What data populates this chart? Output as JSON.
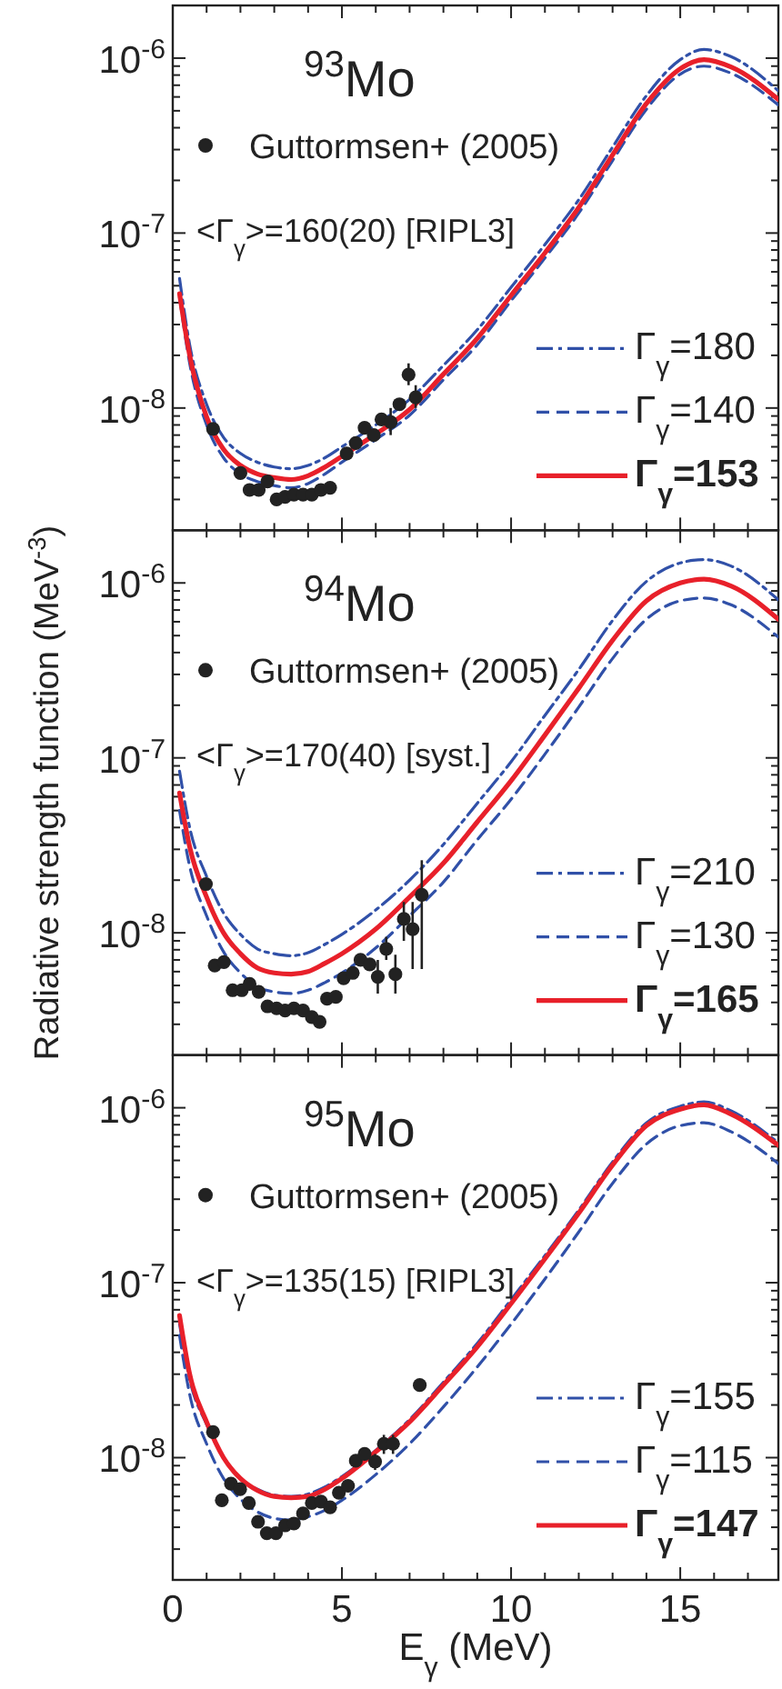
{
  "chart_data": [
    {
      "type": "line",
      "title": "$^{93}$Mo",
      "annotations": [
        "<Γ$_{γ}$>=160(20) [RIPL3]"
      ],
      "xlim": [
        0,
        17.9
      ],
      "ylim": [
        2e-09,
        2e-06
      ],
      "log": "y",
      "tick_labels": "y",
      "legend": "bottom right",
      "xticks": [
        0,
        {
          "value": 1,
          "label": null
        },
        {
          "value": 2,
          "label": null
        },
        {
          "value": 3,
          "label": null
        },
        {
          "value": 4,
          "label": null
        },
        5,
        {
          "value": 6,
          "label": null
        },
        {
          "value": 7,
          "label": null
        },
        {
          "value": 8,
          "label": null
        },
        {
          "value": 9,
          "label": null
        },
        10,
        {
          "value": 11,
          "label": null
        },
        {
          "value": 12,
          "label": null
        },
        {
          "value": 13,
          "label": null
        },
        {
          "value": 14,
          "label": null
        },
        15,
        {
          "value": 16,
          "label": null
        },
        {
          "value": 17,
          "label": null
        }
      ],
      "yticks": [
        {
          "value": 3e-09,
          "label": null
        },
        {
          "value": 4e-09,
          "label": null
        },
        {
          "value": 5e-09,
          "label": null
        },
        {
          "value": 6e-09,
          "label": null
        },
        {
          "value": 7e-09,
          "label": null
        },
        {
          "value": 8e-09,
          "label": null
        },
        {
          "value": 9e-09,
          "label": null
        },
        {
          "value": 1e-08,
          "label": "10$^{-8}$"
        },
        {
          "value": 2e-08,
          "label": null
        },
        {
          "value": 3e-08,
          "label": null
        },
        {
          "value": 4e-08,
          "label": null
        },
        {
          "value": 5e-08,
          "label": null
        },
        {
          "value": 6e-08,
          "label": null
        },
        {
          "value": 7e-08,
          "label": null
        },
        {
          "value": 8e-08,
          "label": null
        },
        {
          "value": 9e-08,
          "label": null
        },
        {
          "value": 1e-07,
          "label": "10$^{-7}$"
        },
        {
          "value": 2e-07,
          "label": null
        },
        {
          "value": 3e-07,
          "label": null
        },
        {
          "value": 4e-07,
          "label": null
        },
        {
          "value": 5e-07,
          "label": null
        },
        {
          "value": 6e-07,
          "label": null
        },
        {
          "value": 7e-07,
          "label": null
        },
        {
          "value": 8e-07,
          "label": null
        },
        {
          "value": 9e-07,
          "label": null
        },
        {
          "value": 1e-06,
          "label": "10$^{-6}$"
        }
      ],
      "series": [
        {
          "type": "scatter",
          "name": "Guttormsen+ (2005)",
          "color": "#222222",
          "marker": "circle",
          "x": [
            1.19,
            2.0,
            2.27,
            2.54,
            2.8,
            3.07,
            3.32,
            3.58,
            3.85,
            4.11,
            4.38,
            4.65,
            5.14,
            5.41,
            5.67,
            5.94,
            6.17,
            6.44,
            6.7,
            6.97,
            7.18
          ],
          "values": [
            7.6e-09,
            4.25e-09,
            3.4e-09,
            3.4e-09,
            3.8e-09,
            3e-09,
            3.1e-09,
            3.2e-09,
            3.2e-09,
            3.2e-09,
            3.4e-09,
            3.5e-09,
            5.5e-09,
            6.3e-09,
            7.7e-09,
            7e-09,
            8.6e-09,
            8.3e-09,
            1.05e-08,
            1.55e-08,
            1.15e-08
          ],
          "errors": [
            null,
            null,
            null,
            null,
            null,
            null,
            null,
            null,
            null,
            null,
            null,
            null,
            null,
            null,
            null,
            null,
            null,
            [
              7e-09,
              1e-08
            ],
            null,
            [
              1.35e-08,
              1.8e-08
            ],
            [
              1e-08,
              1.35e-08
            ]
          ]
        },
        {
          "name": "Γ$_{γ}$=180",
          "color": "#3050a8",
          "line_style": "dashdot",
          "x": [
            0.2,
            0.5,
            1,
            1.5,
            2,
            2.5,
            3,
            3.5,
            4,
            4.5,
            5,
            6,
            7,
            8,
            9,
            10,
            11,
            12,
            13,
            14,
            15,
            15.7,
            16.5,
            17.9
          ],
          "values": [
            5.5e-08,
            2.3e-08,
            1.05e-08,
            6.8e-09,
            5.5e-09,
            4.9e-09,
            4.6e-09,
            4.5e-09,
            4.7e-09,
            5.2e-09,
            6e-09,
            8e-09,
            1.12e-08,
            1.75e-08,
            2.8e-08,
            4.9e-08,
            8.6e-08,
            1.55e-07,
            3.1e-07,
            6.1e-07,
            9.8e-07,
            1.12e-06,
            1.02e-06,
            6.5e-07
          ]
        },
        {
          "name": "Γ$_{γ}$=140",
          "color": "#3050a8",
          "line_style": "dashed",
          "x": [
            0.2,
            0.5,
            1,
            1.5,
            2,
            2.5,
            3,
            3.5,
            4,
            4.5,
            5,
            6,
            7,
            8,
            9,
            10,
            11,
            12,
            13,
            14,
            15,
            15.7,
            16.5,
            17.9
          ],
          "values": [
            4.3e-08,
            1.8e-08,
            8e-09,
            5.2e-09,
            4.2e-09,
            3.8e-09,
            3.6e-09,
            3.5e-09,
            3.7e-09,
            4.2e-09,
            4.9e-09,
            6.6e-09,
            9.1e-09,
            1.45e-08,
            2.3e-08,
            4.1e-08,
            7.2e-08,
            1.3e-07,
            2.6e-07,
            5.1e-07,
            8.1e-07,
            9e-07,
            8.2e-07,
            5.4e-07
          ]
        },
        {
          "name": "Γ$_{γ}$=153",
          "color": "#e8202a",
          "line_style": "solid",
          "x": [
            0.2,
            0.5,
            1,
            1.5,
            2,
            2.5,
            3,
            3.5,
            4,
            4.5,
            5,
            6,
            7,
            8,
            9,
            10,
            11,
            12,
            13,
            14,
            15,
            15.7,
            16.5,
            17.9
          ],
          "values": [
            4.5e-08,
            2e-08,
            8.9e-09,
            5.8e-09,
            4.7e-09,
            4.2e-09,
            4e-09,
            3.9e-09,
            4.1e-09,
            4.6e-09,
            5.3e-09,
            7.1e-09,
            9.8e-09,
            1.56e-08,
            2.5e-08,
            4.4e-08,
            7.7e-08,
            1.4e-07,
            2.8e-07,
            5.5e-07,
            8.7e-07,
            9.8e-07,
            8.9e-07,
            5.8e-07
          ]
        }
      ]
    },
    {
      "type": "line",
      "title": "$^{94}$Mo",
      "ylabel": "Radiative strength function (MeV$^{-3}$)",
      "annotations": [
        "<Γ$_{γ}$>=170(40) [syst.]"
      ],
      "xlim": [
        0,
        17.9
      ],
      "ylim": [
        2e-09,
        2e-06
      ],
      "log": "y",
      "tick_labels": "y",
      "legend": "bottom right",
      "xticks": [
        0,
        {
          "value": 1,
          "label": null
        },
        {
          "value": 2,
          "label": null
        },
        {
          "value": 3,
          "label": null
        },
        {
          "value": 4,
          "label": null
        },
        5,
        {
          "value": 6,
          "label": null
        },
        {
          "value": 7,
          "label": null
        },
        {
          "value": 8,
          "label": null
        },
        {
          "value": 9,
          "label": null
        },
        10,
        {
          "value": 11,
          "label": null
        },
        {
          "value": 12,
          "label": null
        },
        {
          "value": 13,
          "label": null
        },
        {
          "value": 14,
          "label": null
        },
        15,
        {
          "value": 16,
          "label": null
        },
        {
          "value": 17,
          "label": null
        }
      ],
      "yticks": [
        {
          "value": 3e-09,
          "label": null
        },
        {
          "value": 4e-09,
          "label": null
        },
        {
          "value": 5e-09,
          "label": null
        },
        {
          "value": 6e-09,
          "label": null
        },
        {
          "value": 7e-09,
          "label": null
        },
        {
          "value": 8e-09,
          "label": null
        },
        {
          "value": 9e-09,
          "label": null
        },
        {
          "value": 1e-08,
          "label": "10$^{-8}$"
        },
        {
          "value": 2e-08,
          "label": null
        },
        {
          "value": 3e-08,
          "label": null
        },
        {
          "value": 4e-08,
          "label": null
        },
        {
          "value": 5e-08,
          "label": null
        },
        {
          "value": 6e-08,
          "label": null
        },
        {
          "value": 7e-08,
          "label": null
        },
        {
          "value": 8e-08,
          "label": null
        },
        {
          "value": 9e-08,
          "label": null
        },
        {
          "value": 1e-07,
          "label": "10$^{-7}$"
        },
        {
          "value": 2e-07,
          "label": null
        },
        {
          "value": 3e-07,
          "label": null
        },
        {
          "value": 4e-07,
          "label": null
        },
        {
          "value": 5e-07,
          "label": null
        },
        {
          "value": 6e-07,
          "label": null
        },
        {
          "value": 7e-07,
          "label": null
        },
        {
          "value": 8e-07,
          "label": null
        },
        {
          "value": 9e-07,
          "label": null
        },
        {
          "value": 1e-06,
          "label": "10$^{-6}$"
        }
      ],
      "series": [
        {
          "type": "scatter",
          "name": "Guttormsen+ (2005)",
          "color": "#222222",
          "marker": "circle",
          "x": [
            0.98,
            1.24,
            1.51,
            1.77,
            2.04,
            2.27,
            2.54,
            2.8,
            3.07,
            3.32,
            3.58,
            3.85,
            4.11,
            4.34,
            4.56,
            4.82,
            5.05,
            5.32,
            5.55,
            5.82,
            6.06,
            6.31,
            6.58,
            6.83,
            7.09,
            7.36
          ],
          "values": [
            1.9e-08,
            6.5e-09,
            6.8e-09,
            4.7e-09,
            4.7e-09,
            5.1e-09,
            4.6e-09,
            3.8e-09,
            3.7e-09,
            3.6e-09,
            3.7e-09,
            3.6e-09,
            3.3e-09,
            3.1e-09,
            4.2e-09,
            4.3e-09,
            5.5e-09,
            5.9e-09,
            7e-09,
            6.6e-09,
            5.6e-09,
            8.1e-09,
            5.8e-09,
            1.2e-08,
            1.05e-08,
            1.65e-08
          ],
          "errors": [
            null,
            null,
            null,
            null,
            null,
            null,
            null,
            null,
            null,
            null,
            null,
            null,
            null,
            null,
            null,
            null,
            null,
            null,
            null,
            null,
            [
              4.5e-09,
              7e-09
            ],
            [
              7e-09,
              9.5e-09
            ],
            [
              4.5e-09,
              7.5e-09
            ],
            [
              9e-09,
              1.5e-08
            ],
            [
              6.2e-09,
              1.5e-08
            ],
            [
              6.2e-09,
              2.6e-08
            ]
          ]
        },
        {
          "name": "Γ$_{γ}$=210",
          "color": "#3050a8",
          "line_style": "dashdot",
          "x": [
            0.2,
            0.5,
            1,
            1.5,
            2,
            2.5,
            3,
            3.5,
            4,
            4.5,
            5,
            6,
            7,
            8,
            9,
            10,
            11,
            12,
            13,
            14,
            15,
            15.7,
            16.5,
            17.9
          ],
          "values": [
            8.4e-08,
            4e-08,
            2.1e-08,
            1.3e-08,
            9.8e-09,
            8.1e-09,
            7.6e-09,
            7.4e-09,
            7.7e-09,
            8.6e-09,
            9.8e-09,
            1.35e-08,
            2e-08,
            3.2e-08,
            5.5e-08,
            9.5e-08,
            1.75e-07,
            3.2e-07,
            6.1e-07,
            1.02e-06,
            1.3e-06,
            1.36e-06,
            1.25e-06,
            8e-07
          ]
        },
        {
          "name": "Γ$_{γ}$=130",
          "color": "#3050a8",
          "line_style": "dashed",
          "x": [
            0.2,
            0.5,
            1,
            1.5,
            2,
            2.5,
            3,
            3.5,
            4,
            4.5,
            5,
            6,
            7,
            8,
            9,
            10,
            11,
            12,
            13,
            14,
            15,
            15.7,
            16.5,
            17.9
          ],
          "values": [
            5e-08,
            2.4e-08,
            1.25e-08,
            7.8e-09,
            5.9e-09,
            4.9e-09,
            4.6e-09,
            4.5e-09,
            4.7e-09,
            5.2e-09,
            5.9e-09,
            8.2e-09,
            1.25e-08,
            1.95e-08,
            3.4e-08,
            5.8e-08,
            1.05e-07,
            1.95e-07,
            3.7e-07,
            6.2e-07,
            7.9e-07,
            8.2e-07,
            7.5e-07,
            4.9e-07
          ]
        },
        {
          "name": "Γ$_{γ}$=165",
          "color": "#e8202a",
          "line_style": "solid",
          "x": [
            0.2,
            0.5,
            1,
            1.5,
            2,
            2.5,
            3,
            3.5,
            4,
            4.5,
            5,
            6,
            7,
            8,
            9,
            10,
            11,
            12,
            13,
            14,
            15,
            15.7,
            16.5,
            17.9
          ],
          "values": [
            6.3e-08,
            3.1e-08,
            1.6e-08,
            1e-08,
            7.6e-09,
            6.3e-09,
            5.9e-09,
            5.8e-09,
            6e-09,
            6.7e-09,
            7.6e-09,
            1.05e-08,
            1.6e-08,
            2.5e-08,
            4.3e-08,
            7.4e-08,
            1.35e-07,
            2.5e-07,
            4.7e-07,
            7.9e-07,
            1e-06,
            1.05e-06,
            9.6e-07,
            6.2e-07
          ]
        }
      ]
    },
    {
      "type": "line",
      "title": "$^{95}$Mo",
      "xlabel": "E$_{γ}$ (MeV)",
      "annotations": [
        "<Γ$_{γ}$>=135(15) [RIPL3]"
      ],
      "xlim": [
        0,
        17.9
      ],
      "ylim": [
        2e-09,
        2e-06
      ],
      "log": "y",
      "legend": "bottom right",
      "xticks": [
        0,
        {
          "value": 1,
          "label": null
        },
        {
          "value": 2,
          "label": null
        },
        {
          "value": 3,
          "label": null
        },
        {
          "value": 4,
          "label": null
        },
        5,
        {
          "value": 6,
          "label": null
        },
        {
          "value": 7,
          "label": null
        },
        {
          "value": 8,
          "label": null
        },
        {
          "value": 9,
          "label": null
        },
        10,
        {
          "value": 11,
          "label": null
        },
        {
          "value": 12,
          "label": null
        },
        {
          "value": 13,
          "label": null
        },
        {
          "value": 14,
          "label": null
        },
        15,
        {
          "value": 16,
          "label": null
        },
        {
          "value": 17,
          "label": null
        }
      ],
      "yticks": [
        {
          "value": 3e-09,
          "label": null
        },
        {
          "value": 4e-09,
          "label": null
        },
        {
          "value": 5e-09,
          "label": null
        },
        {
          "value": 6e-09,
          "label": null
        },
        {
          "value": 7e-09,
          "label": null
        },
        {
          "value": 8e-09,
          "label": null
        },
        {
          "value": 9e-09,
          "label": null
        },
        {
          "value": 1e-08,
          "label": "10$^{-8}$"
        },
        {
          "value": 2e-08,
          "label": null
        },
        {
          "value": 3e-08,
          "label": null
        },
        {
          "value": 4e-08,
          "label": null
        },
        {
          "value": 5e-08,
          "label": null
        },
        {
          "value": 6e-08,
          "label": null
        },
        {
          "value": 7e-08,
          "label": null
        },
        {
          "value": 8e-08,
          "label": null
        },
        {
          "value": 9e-08,
          "label": null
        },
        {
          "value": 1e-07,
          "label": "10$^{-7}$"
        },
        {
          "value": 2e-07,
          "label": null
        },
        {
          "value": 3e-07,
          "label": null
        },
        {
          "value": 4e-07,
          "label": null
        },
        {
          "value": 5e-07,
          "label": null
        },
        {
          "value": 6e-07,
          "label": null
        },
        {
          "value": 7e-07,
          "label": null
        },
        {
          "value": 8e-07,
          "label": null
        },
        {
          "value": 9e-07,
          "label": null
        },
        {
          "value": 1e-06,
          "label": "10$^{-6}$"
        }
      ],
      "series": [
        {
          "type": "scatter",
          "name": "Guttormsen+ (2005)",
          "color": "#222222",
          "marker": "circle",
          "x": [
            1.19,
            1.45,
            1.72,
            1.99,
            2.25,
            2.52,
            2.78,
            3.05,
            3.32,
            3.58,
            3.85,
            4.11,
            4.38,
            4.65,
            4.91,
            5.18,
            5.41,
            5.67,
            5.98,
            6.24,
            6.51,
            7.3
          ],
          "values": [
            1.4e-08,
            5.7e-09,
            7.1e-09,
            6.6e-09,
            5.5e-09,
            4.3e-09,
            3.7e-09,
            3.7e-09,
            4.1e-09,
            4.2e-09,
            4.8e-09,
            5.5e-09,
            5.6e-09,
            5.2e-09,
            6.3e-09,
            6.9e-09,
            9.6e-09,
            1.05e-08,
            9.5e-09,
            1.2e-08,
            1.2e-08,
            2.6e-08
          ],
          "errors": [
            null,
            null,
            null,
            null,
            null,
            null,
            null,
            null,
            null,
            null,
            null,
            null,
            null,
            null,
            null,
            null,
            null,
            null,
            [
              8.5e-09,
              1.05e-08
            ],
            [
              1.05e-08,
              1.35e-08
            ],
            [
              1.05e-08,
              1.35e-08
            ],
            null
          ]
        },
        {
          "name": "Γ$_{γ}$=155",
          "color": "#3050a8",
          "line_style": "dashdot",
          "x": [
            0.2,
            0.5,
            1,
            1.5,
            2,
            2.5,
            3,
            3.5,
            4,
            4.5,
            5,
            6,
            7,
            8,
            9,
            10,
            11,
            12,
            13,
            14,
            15,
            15.7,
            16.5,
            17.9
          ],
          "values": [
            5.8e-08,
            2.8e-08,
            1.55e-08,
            1e-08,
            7.6e-09,
            6.6e-09,
            6.1e-09,
            6e-09,
            6.2e-09,
            6.8e-09,
            7.8e-09,
            1.1e-08,
            1.65e-08,
            2.7e-08,
            4.5e-08,
            8e-08,
            1.43e-07,
            2.6e-07,
            4.9e-07,
            8.2e-07,
            1.02e-06,
            1.08e-06,
            9.6e-07,
            6.3e-07
          ]
        },
        {
          "name": "Γ$_{γ}$=115",
          "color": "#3050a8",
          "line_style": "dashed",
          "x": [
            0.2,
            0.5,
            1,
            1.5,
            2,
            2.5,
            3,
            3.5,
            4,
            4.5,
            5,
            6,
            7,
            8,
            9,
            10,
            11,
            12,
            13,
            14,
            15,
            15.7,
            16.5,
            17.9
          ],
          "values": [
            5e-08,
            2.3e-08,
            1.2e-08,
            7.6e-09,
            5.8e-09,
            4.9e-09,
            4.5e-09,
            4.4e-09,
            4.6e-09,
            5e-09,
            5.7e-09,
            8e-09,
            1.2e-08,
            1.95e-08,
            3.3e-08,
            5.8e-08,
            1.05e-07,
            1.95e-07,
            3.7e-07,
            6.2e-07,
            7.9e-07,
            8.2e-07,
            7.3e-07,
            4.8e-07
          ]
        },
        {
          "name": "Γ$_{γ}$=147",
          "color": "#e8202a",
          "line_style": "solid",
          "x": [
            0.2,
            0.5,
            1,
            1.5,
            2,
            2.5,
            3,
            3.5,
            4,
            4.5,
            5,
            6,
            7,
            8,
            9,
            10,
            11,
            12,
            13,
            14,
            15,
            15.7,
            16.5,
            17.9
          ],
          "values": [
            6.5e-08,
            3e-08,
            1.6e-08,
            1e-08,
            7.6e-09,
            6.5e-09,
            6e-09,
            5.9e-09,
            6e-09,
            6.6e-09,
            7.6e-09,
            1.08e-08,
            1.6e-08,
            2.6e-08,
            4.3e-08,
            7.6e-08,
            1.37e-07,
            2.5e-07,
            4.7e-07,
            7.9e-07,
            9.8e-07,
            1.04e-06,
            9.2e-07,
            6.1e-07
          ]
        }
      ]
    }
  ]
}
